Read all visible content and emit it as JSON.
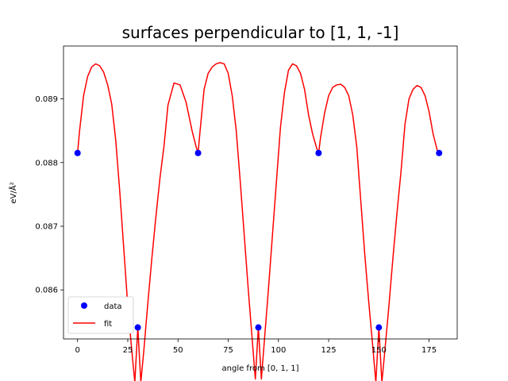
{
  "chart_data": {
    "type": "line",
    "title": "surfaces perpendicular to [1, 1, -1]",
    "xlabel": "angle from [0, 1, 1]",
    "ylabel": "eV/Å²",
    "xlim": [
      -7,
      189
    ],
    "ylim": [
      0.08523,
      0.08983
    ],
    "xticks": [
      0,
      25,
      50,
      75,
      100,
      125,
      150,
      175
    ],
    "yticks": [
      0.086,
      0.087,
      0.088,
      0.089
    ],
    "ytick_labels": [
      "0.086",
      "0.087",
      "0.088",
      "0.089"
    ],
    "grid": false,
    "legend": "lower-left",
    "series": [
      {
        "name": "data",
        "style": "markers",
        "color": "#0000ff",
        "x": [
          0,
          30,
          60,
          90,
          120,
          150,
          180
        ],
        "y": [
          0.08815,
          0.08541,
          0.08815,
          0.08541,
          0.08815,
          0.08541,
          0.08815
        ]
      },
      {
        "name": "fit",
        "style": "line",
        "color": "#ff0000",
        "x": [
          0,
          1,
          3,
          5,
          7,
          9,
          11,
          13,
          15,
          17,
          19,
          21,
          23,
          25,
          27,
          28.5,
          30,
          31.5,
          33,
          35,
          37,
          39,
          41,
          43,
          45,
          48,
          51,
          54,
          57,
          59,
          60,
          61,
          63,
          65,
          67,
          69,
          71,
          73,
          75,
          77,
          79,
          81,
          83,
          85,
          87,
          88.5,
          90,
          91.5,
          93,
          95,
          97,
          99,
          101,
          103,
          105,
          107,
          109,
          111,
          113,
          115,
          117,
          119,
          120,
          121,
          123,
          125,
          127,
          129,
          131,
          133,
          135,
          137,
          139,
          141,
          143,
          145,
          147,
          148.5,
          150,
          151.5,
          153,
          155,
          157,
          159,
          161,
          163,
          165,
          167,
          169,
          171,
          173,
          175,
          177,
          179,
          180
        ],
        "y": [
          0.08815,
          0.0885,
          0.08905,
          0.08935,
          0.0895,
          0.08955,
          0.08952,
          0.08942,
          0.08922,
          0.08892,
          0.08835,
          0.08755,
          0.08665,
          0.08575,
          0.08505,
          0.08455,
          0.08541,
          0.08455,
          0.08505,
          0.0858,
          0.0865,
          0.08715,
          0.08775,
          0.08825,
          0.0889,
          0.08925,
          0.08922,
          0.08895,
          0.0885,
          0.08825,
          0.08815,
          0.0885,
          0.08915,
          0.0894,
          0.0895,
          0.08955,
          0.08957,
          0.08955,
          0.0894,
          0.08905,
          0.0885,
          0.0877,
          0.08685,
          0.086,
          0.0852,
          0.0846,
          0.08541,
          0.0846,
          0.0852,
          0.086,
          0.08685,
          0.0877,
          0.08855,
          0.0891,
          0.08945,
          0.08955,
          0.08952,
          0.0894,
          0.08915,
          0.08875,
          0.08845,
          0.08823,
          0.08815,
          0.0884,
          0.08878,
          0.08905,
          0.08918,
          0.08922,
          0.08923,
          0.08918,
          0.08905,
          0.08875,
          0.08825,
          0.0874,
          0.08655,
          0.0858,
          0.0851,
          0.08455,
          0.08541,
          0.08455,
          0.08505,
          0.08575,
          0.0865,
          0.0872,
          0.08785,
          0.0886,
          0.089,
          0.08915,
          0.08921,
          0.08918,
          0.08905,
          0.0888,
          0.08845,
          0.0882,
          0.08815
        ]
      }
    ]
  }
}
